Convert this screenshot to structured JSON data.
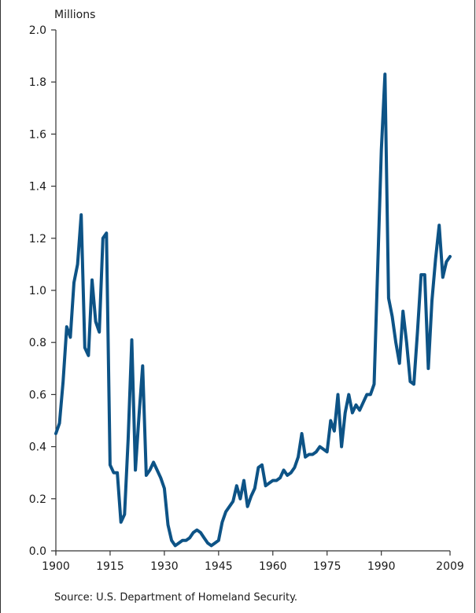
{
  "chart_data": {
    "type": "line",
    "unit_label": "Millions",
    "source": "Source: U.S. Department of Homeland Security.",
    "ylim": [
      0,
      2.0
    ],
    "xlim": [
      1900,
      2009
    ],
    "yticks": [
      "0.0",
      "0.2",
      "0.4",
      "0.6",
      "0.8",
      "1.0",
      "1.2",
      "1.4",
      "1.6",
      "1.8",
      "2.0"
    ],
    "xticks": [
      "1900",
      "1915",
      "1930",
      "1945",
      "1960",
      "1975",
      "1990",
      "2009"
    ],
    "line_color": "#0d5386",
    "grid": false,
    "x": [
      1900,
      1901,
      1902,
      1903,
      1904,
      1905,
      1906,
      1907,
      1908,
      1909,
      1910,
      1911,
      1912,
      1913,
      1914,
      1915,
      1916,
      1917,
      1918,
      1919,
      1920,
      1921,
      1922,
      1923,
      1924,
      1925,
      1926,
      1927,
      1928,
      1929,
      1930,
      1931,
      1932,
      1933,
      1934,
      1935,
      1936,
      1937,
      1938,
      1939,
      1940,
      1941,
      1942,
      1943,
      1944,
      1945,
      1946,
      1947,
      1948,
      1949,
      1950,
      1951,
      1952,
      1953,
      1954,
      1955,
      1956,
      1957,
      1958,
      1959,
      1960,
      1961,
      1962,
      1963,
      1964,
      1965,
      1966,
      1967,
      1968,
      1969,
      1970,
      1971,
      1972,
      1973,
      1974,
      1975,
      1976,
      1977,
      1978,
      1979,
      1980,
      1981,
      1982,
      1983,
      1984,
      1985,
      1986,
      1987,
      1988,
      1989,
      1990,
      1991,
      1992,
      1993,
      1994,
      1995,
      1996,
      1997,
      1998,
      1999,
      2000,
      2001,
      2002,
      2003,
      2004,
      2005,
      2006,
      2007,
      2008,
      2009
    ],
    "y": [
      0.45,
      0.49,
      0.65,
      0.86,
      0.82,
      1.03,
      1.1,
      1.29,
      0.78,
      0.75,
      1.04,
      0.88,
      0.84,
      1.2,
      1.22,
      0.33,
      0.3,
      0.3,
      0.11,
      0.14,
      0.43,
      0.81,
      0.31,
      0.52,
      0.71,
      0.29,
      0.31,
      0.34,
      0.31,
      0.28,
      0.24,
      0.1,
      0.04,
      0.02,
      0.03,
      0.04,
      0.04,
      0.05,
      0.07,
      0.08,
      0.07,
      0.05,
      0.03,
      0.02,
      0.03,
      0.04,
      0.11,
      0.15,
      0.17,
      0.19,
      0.25,
      0.2,
      0.27,
      0.17,
      0.21,
      0.24,
      0.32,
      0.33,
      0.25,
      0.26,
      0.27,
      0.27,
      0.28,
      0.31,
      0.29,
      0.3,
      0.32,
      0.36,
      0.45,
      0.36,
      0.37,
      0.37,
      0.38,
      0.4,
      0.39,
      0.38,
      0.5,
      0.46,
      0.6,
      0.4,
      0.53,
      0.6,
      0.53,
      0.56,
      0.54,
      0.57,
      0.6,
      0.6,
      0.64,
      1.09,
      1.54,
      1.83,
      0.97,
      0.9,
      0.8,
      0.72,
      0.92,
      0.8,
      0.65,
      0.64,
      0.84,
      1.06,
      1.06,
      0.7,
      0.96,
      1.12,
      1.25,
      1.05,
      1.11,
      1.13
    ]
  }
}
